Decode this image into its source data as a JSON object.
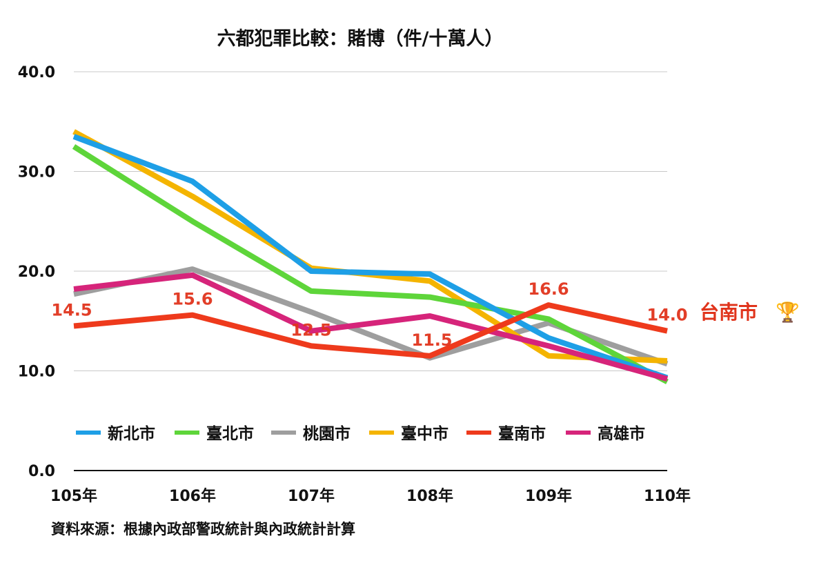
{
  "chart_data": {
    "type": "line",
    "title": "六都犯罪比較：賭博（件/十萬人）",
    "categories": [
      "105年",
      "106年",
      "107年",
      "108年",
      "109年",
      "110年"
    ],
    "ylim": [
      0,
      40
    ],
    "yticks": [
      "0.0",
      "10.0",
      "20.0",
      "30.0",
      "40.0"
    ],
    "grid": true,
    "legend_position": "bottom",
    "series": [
      {
        "name": "新北市",
        "color": "#1E9FE6",
        "values": [
          33.5,
          29.0,
          20.0,
          19.7,
          13.3,
          9.3
        ]
      },
      {
        "name": "臺北市",
        "color": "#5ED53A",
        "values": [
          32.5,
          25.0,
          18.0,
          17.4,
          15.2,
          8.9
        ]
      },
      {
        "name": "桃園市",
        "color": "#9E9E9E",
        "values": [
          17.7,
          20.2,
          15.9,
          11.3,
          14.8,
          10.7
        ]
      },
      {
        "name": "臺中市",
        "color": "#F4B400",
        "values": [
          34.0,
          27.5,
          20.3,
          19.0,
          11.5,
          11.0
        ]
      },
      {
        "name": "臺南市",
        "color": "#EE3A1C",
        "values": [
          14.5,
          15.6,
          12.5,
          11.5,
          16.6,
          14.0
        ]
      },
      {
        "name": "高雄市",
        "color": "#D6247A",
        "values": [
          18.2,
          19.6,
          14.0,
          15.5,
          12.5,
          9.2
        ]
      }
    ],
    "data_labels": [
      {
        "series": "臺南市",
        "x": "105年",
        "text": "14.5"
      },
      {
        "series": "臺南市",
        "x": "106年",
        "text": "15.6"
      },
      {
        "series": "臺南市",
        "x": "107年",
        "text": "12.5"
      },
      {
        "series": "臺南市",
        "x": "108年",
        "text": "11.5"
      },
      {
        "series": "臺南市",
        "x": "109年",
        "text": "16.6"
      },
      {
        "series": "臺南市",
        "x": "110年",
        "text": "14.0"
      }
    ],
    "annotation": {
      "text": "台南市",
      "icon": "trophy-icon",
      "glyph": "🏆",
      "color": "#E0341C"
    },
    "source_note": "資料來源：根據內政部警政統計與內政統計計算"
  }
}
